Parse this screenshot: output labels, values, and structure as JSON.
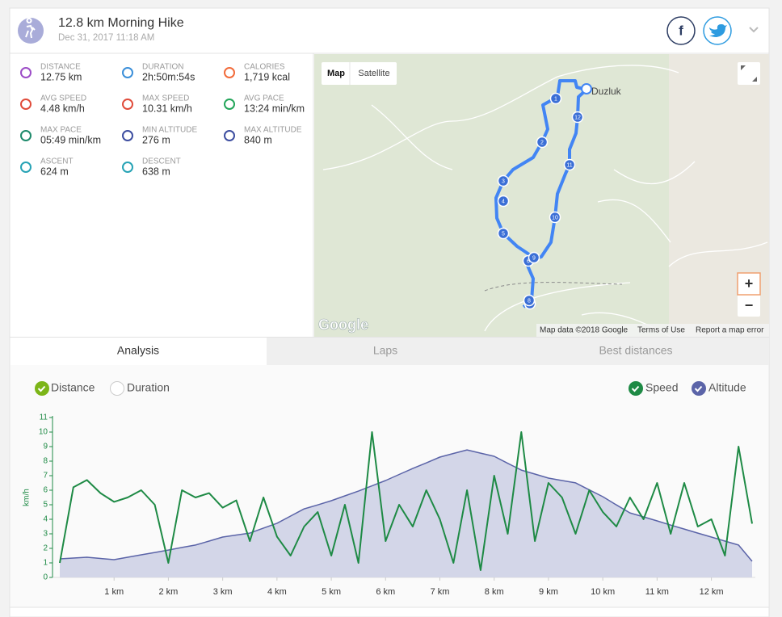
{
  "header": {
    "title": "12.8 km Morning Hike",
    "date": "Dec 31, 2017 11:18 AM"
  },
  "stats": [
    {
      "label": "DISTANCE",
      "value": "12.75 km"
    },
    {
      "label": "DURATION",
      "value": "2h:50m:54s"
    },
    {
      "label": "CALORIES",
      "value": "1,719 kcal"
    },
    {
      "label": "AVG SPEED",
      "value": "4.48 km/h"
    },
    {
      "label": "MAX SPEED",
      "value": "10.31 km/h"
    },
    {
      "label": "AVG PACE",
      "value": "13:24 min/km"
    },
    {
      "label": "MAX PACE",
      "value": "05:49 min/km"
    },
    {
      "label": "MIN ALTITUDE",
      "value": "276 m"
    },
    {
      "label": "MAX ALTITUDE",
      "value": "840 m"
    },
    {
      "label": "ASCENT",
      "value": "624 m"
    },
    {
      "label": "DESCENT",
      "value": "638 m"
    }
  ],
  "map": {
    "map_button": "Map",
    "satellite_button": "Satellite",
    "place": "Duzluk",
    "logo": "Google",
    "attribution": "Map data ©2018 Google",
    "terms": "Terms of Use",
    "report": "Report a map error",
    "zoom_in": "+",
    "zoom_out": "−",
    "markers": [
      "1",
      "2",
      "3",
      "4",
      "5",
      "6",
      "7",
      "8",
      "9",
      "10",
      "11",
      "12"
    ]
  },
  "tabs": [
    "Analysis",
    "Laps",
    "Best distances"
  ],
  "x_axis_toggle": [
    "Distance",
    "Duration"
  ],
  "chart_data": {
    "type": "line",
    "ylabel": "km/h",
    "x": [
      0,
      0.25,
      0.5,
      0.75,
      1,
      1.25,
      1.5,
      1.75,
      2,
      2.25,
      2.5,
      2.75,
      3,
      3.25,
      3.5,
      3.75,
      4,
      4.25,
      4.5,
      4.75,
      5,
      5.25,
      5.5,
      5.75,
      6,
      6.25,
      6.5,
      6.75,
      7,
      7.25,
      7.5,
      7.75,
      8,
      8.25,
      8.5,
      8.75,
      9,
      9.25,
      9.5,
      9.75,
      10,
      10.25,
      10.5,
      10.75,
      11,
      11.25,
      11.5,
      11.75,
      12,
      12.25,
      12.5,
      12.75
    ],
    "xlim": [
      0,
      12.75
    ],
    "xticks": [
      {
        "value": 1,
        "label": "1 km"
      },
      {
        "value": 2,
        "label": "2 km"
      },
      {
        "value": 3,
        "label": "3 km"
      },
      {
        "value": 4,
        "label": "4 km"
      },
      {
        "value": 5,
        "label": "5 km"
      },
      {
        "value": 6,
        "label": "6 km"
      },
      {
        "value": 7,
        "label": "7 km"
      },
      {
        "value": 8,
        "label": "8 km"
      },
      {
        "value": 9,
        "label": "9 km"
      },
      {
        "value": 10,
        "label": "10 km"
      },
      {
        "value": 11,
        "label": "11 km"
      },
      {
        "value": 12,
        "label": "12 km"
      }
    ],
    "ylim": [
      0,
      11
    ],
    "yticks": [
      0,
      1,
      2,
      3,
      4,
      5,
      6,
      7,
      8,
      9,
      10,
      11
    ],
    "y2lim": [
      200,
      1000
    ],
    "series": [
      {
        "name": "Altitude",
        "color": "#5b64a8",
        "fill": "#d3d6e8",
        "axis": "y2",
        "values": [
          293,
          297,
          301,
          295,
          289,
          301,
          313,
          325,
          337,
          350,
          362,
          382,
          402,
          412,
          422,
          447,
          471,
          507,
          543,
          563,
          584,
          608,
          632,
          658,
          685,
          715,
          745,
          773,
          802,
          820,
          838,
          822,
          806,
          771,
          737,
          717,
          697,
          685,
          673,
          638,
          604,
          563,
          523,
          503,
          483,
          462,
          442,
          422,
          402,
          382,
          362,
          281
        ]
      },
      {
        "name": "Speed",
        "color": "#1e8a45",
        "values": [
          1.0,
          6.2,
          6.7,
          5.8,
          5.2,
          5.5,
          6.0,
          5.0,
          1.0,
          6.0,
          5.5,
          5.8,
          4.8,
          5.3,
          2.5,
          5.5,
          2.8,
          1.5,
          3.5,
          4.5,
          1.5,
          5.0,
          1.0,
          10.0,
          2.5,
          5.0,
          3.5,
          6.0,
          4.0,
          1.0,
          6.0,
          0.5,
          7.0,
          3.0,
          10.0,
          2.5,
          6.5,
          5.5,
          3.0,
          6.0,
          4.5,
          3.5,
          5.5,
          4.0,
          6.5,
          3.0,
          6.5,
          3.5,
          4.0,
          1.5,
          9.0,
          3.7
        ]
      }
    ]
  }
}
